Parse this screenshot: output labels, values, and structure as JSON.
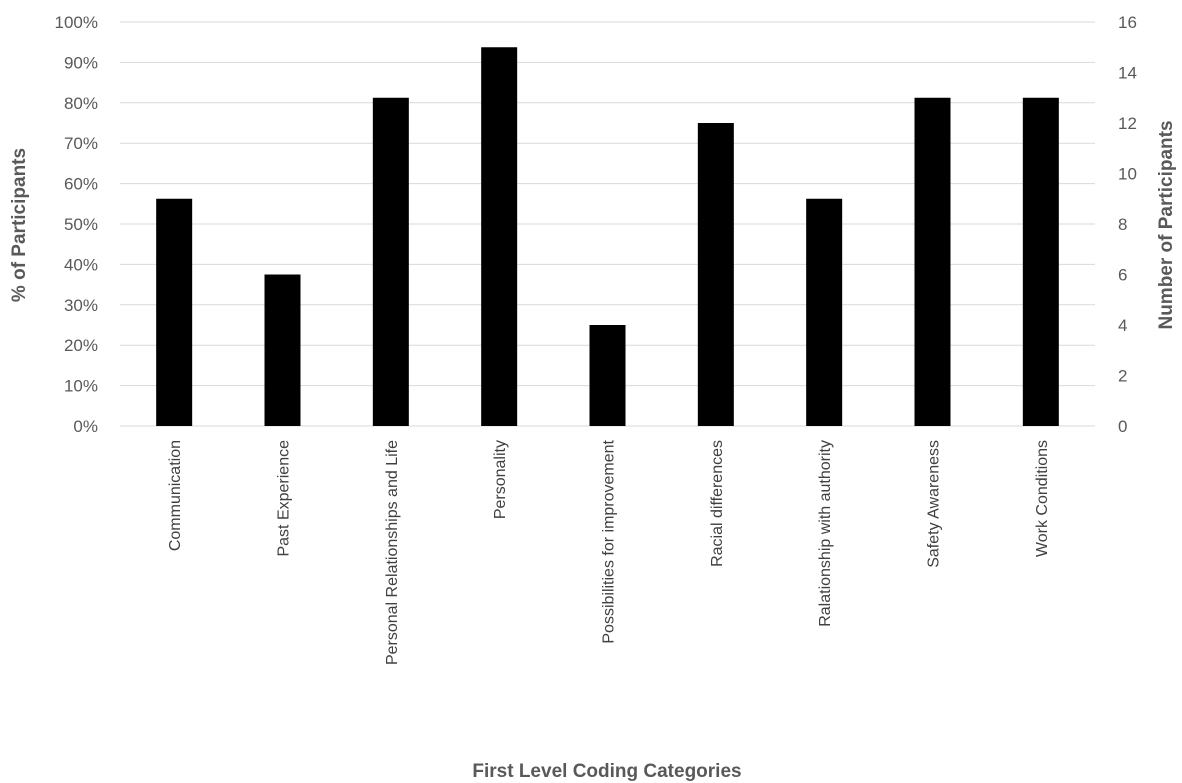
{
  "chart_data": {
    "type": "bar",
    "categories": [
      "Communication",
      "Past Experience",
      "Personal Relationships and Life",
      "Personality",
      "Possibilities for improvement",
      "Racial differences",
      "Ralationship with authority",
      "Safety Awareness",
      "Work Conditions"
    ],
    "values": [
      9,
      6,
      13,
      15,
      4,
      12,
      9,
      13,
      13
    ],
    "xlabel": "First Level Coding Categories",
    "ylabel_left": "% of Participants",
    "ylabel_right": "Number of Participants",
    "yticks_left": [
      "0%",
      "10%",
      "20%",
      "30%",
      "40%",
      "50%",
      "60%",
      "70%",
      "80%",
      "90%",
      "100%"
    ],
    "yticks_right": [
      "0",
      "2",
      "4",
      "6",
      "8",
      "10",
      "12",
      "14",
      "16"
    ],
    "ylim_left": [
      0,
      100
    ],
    "ylim_right": [
      0,
      16
    ],
    "grid": true,
    "bar_color": "#000000"
  }
}
